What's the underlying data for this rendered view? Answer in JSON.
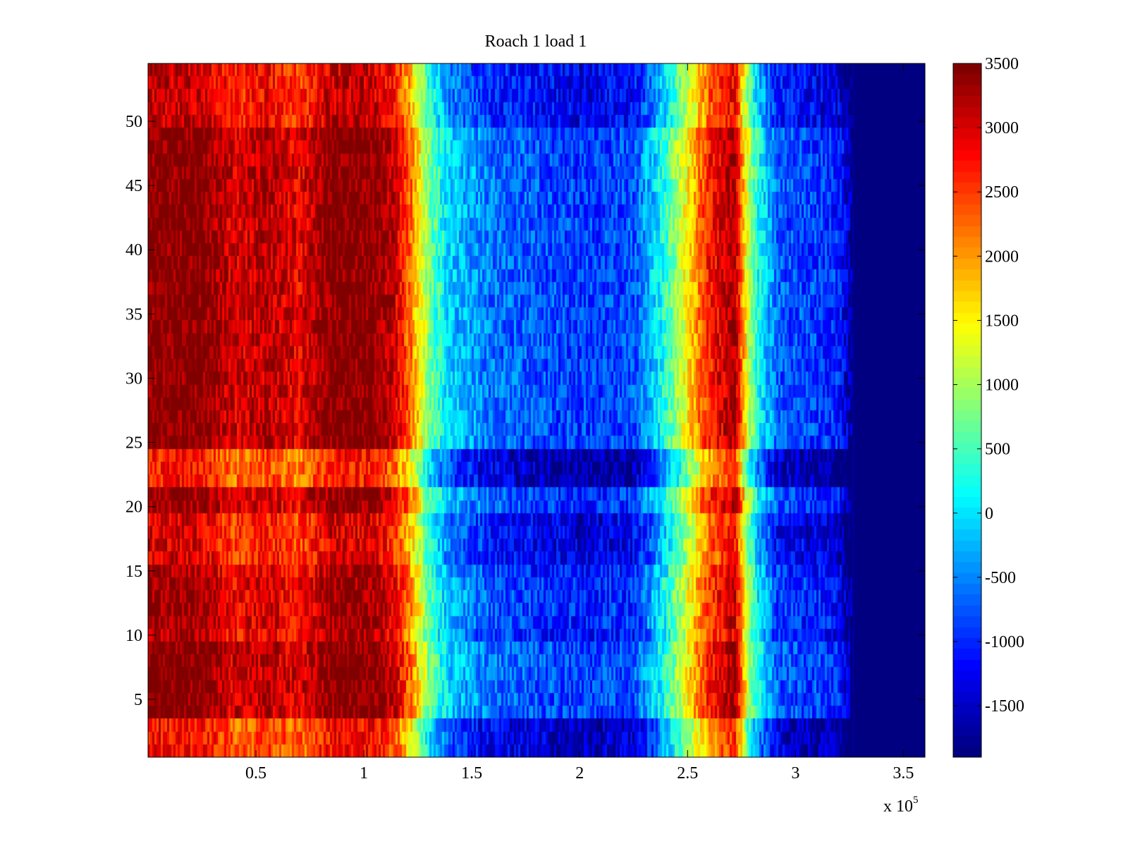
{
  "chart_data": {
    "type": "heatmap",
    "title": "Roach 1 load 1",
    "xlabel": "",
    "ylabel": "",
    "x_multiplier_label": "x 10",
    "x_multiplier_exponent": "5",
    "xlim": [
      0,
      360000
    ],
    "ylim": [
      0.5,
      54.5
    ],
    "xticks": [
      50000,
      100000,
      150000,
      200000,
      250000,
      300000,
      350000
    ],
    "xtick_labels": [
      "0.5",
      "1",
      "1.5",
      "2",
      "2.5",
      "3",
      "3.5"
    ],
    "yticks": [
      5,
      10,
      15,
      20,
      25,
      30,
      35,
      40,
      45,
      50
    ],
    "ytick_labels": [
      "5",
      "10",
      "15",
      "20",
      "25",
      "30",
      "35",
      "40",
      "45",
      "50"
    ],
    "rows": 54,
    "colormap": "jet",
    "clim": [
      -1900,
      3500
    ],
    "colorbar": {
      "ticks": [
        3500,
        3000,
        2500,
        2000,
        1500,
        1000,
        500,
        0,
        -500,
        -1000,
        -1500
      ],
      "tick_labels": [
        "3500",
        "3000",
        "2500",
        "2000",
        "1500",
        "1000",
        "500",
        "0",
        "-500",
        "-1000",
        "-1500"
      ],
      "levels": 64
    },
    "column_profile": [
      {
        "x": 0,
        "value": 3500
      },
      {
        "x": 25000,
        "value": 3500
      },
      {
        "x": 40000,
        "value": 3000
      },
      {
        "x": 55000,
        "value": 3200
      },
      {
        "x": 70000,
        "value": 2900
      },
      {
        "x": 85000,
        "value": 3500
      },
      {
        "x": 105000,
        "value": 3500
      },
      {
        "x": 115000,
        "value": 3000
      },
      {
        "x": 122000,
        "value": 2200
      },
      {
        "x": 130000,
        "value": 800
      },
      {
        "x": 140000,
        "value": -100
      },
      {
        "x": 160000,
        "value": -600
      },
      {
        "x": 200000,
        "value": -900
      },
      {
        "x": 225000,
        "value": -800
      },
      {
        "x": 238000,
        "value": 200
      },
      {
        "x": 250000,
        "value": 1500
      },
      {
        "x": 260000,
        "value": 2700
      },
      {
        "x": 272000,
        "value": 3300
      },
      {
        "x": 278000,
        "value": 1200
      },
      {
        "x": 283000,
        "value": 200
      },
      {
        "x": 292000,
        "value": -700
      },
      {
        "x": 320000,
        "value": -1000
      },
      {
        "x": 328000,
        "value": -1900
      },
      {
        "x": 360000,
        "value": -1900
      }
    ],
    "row_groups": [
      {
        "rows": [
          1,
          3
        ],
        "offset": -700
      },
      {
        "rows": [
          4,
          9
        ],
        "offset": 0
      },
      {
        "rows": [
          10,
          10
        ],
        "offset": -300
      },
      {
        "rows": [
          11,
          14
        ],
        "offset": -150
      },
      {
        "rows": [
          15,
          15
        ],
        "offset": -250
      },
      {
        "rows": [
          16,
          19
        ],
        "offset": -500
      },
      {
        "rows": [
          20,
          21
        ],
        "offset": -100
      },
      {
        "rows": [
          22,
          24
        ],
        "offset": -800
      },
      {
        "rows": [
          25,
          49
        ],
        "offset": 0
      },
      {
        "rows": [
          50,
          54
        ],
        "offset": -400
      }
    ]
  }
}
